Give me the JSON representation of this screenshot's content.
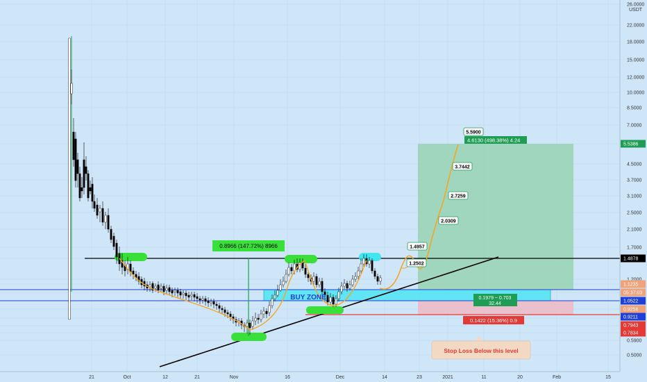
{
  "chart_data": {
    "type": "candlestick",
    "currency_label": "USDT",
    "scale": "log",
    "y_ticks": [
      "26.0000",
      "22.0000",
      "18.0000",
      "15.0000",
      "12.0000",
      "10.0000",
      "8.5000",
      "7.0000",
      "5.5386",
      "4.5000",
      "3.7000",
      "3.1000",
      "2.5000",
      "2.1000",
      "1.7000",
      "1.4878",
      "1.2000",
      "1.1235",
      "05:37:03",
      "1.0522",
      "0.9256",
      "0.9211",
      "0.7943",
      "0.7834",
      "0.5900",
      "0.5000"
    ],
    "x_ticks": [
      "21",
      "Oct",
      "12",
      "21",
      "Nov",
      "16",
      "Dec",
      "14",
      "23",
      "2021",
      "11",
      "20",
      "Feb",
      "15"
    ],
    "price_tags": [
      {
        "label": "5.5386",
        "color": "#1f9d55"
      },
      {
        "label": "1.4878",
        "color": "#000000"
      },
      {
        "label": "1.1235",
        "color": "#f0a37a"
      },
      {
        "label": "05:37:03",
        "color": "#f0a37a"
      },
      {
        "label": "1.0522",
        "color": "#1e3fd8"
      },
      {
        "label": "0.9256",
        "color": "#f0a37a"
      },
      {
        "label": "0.9211",
        "color": "#1e3fd8"
      },
      {
        "label": "0.7943",
        "color": "#e53935"
      },
      {
        "label": "0.7834",
        "color": "#e53935"
      }
    ],
    "annotations": {
      "measure_label": "0.8966 (147.72%) 8966",
      "buy_zone": "BUY ZONE",
      "targets": [
        "5.5900",
        "3.7442",
        "2.7259",
        "2.0309",
        "1.4957",
        "1.2502"
      ],
      "profit_label": "4.6130 (498.38%) 4.24",
      "range_label_line1": "0.1979 ~ 0.703",
      "range_label_line2": "32.44",
      "loss_label": "0.1422 (15.36%) 0.9",
      "stop_loss_note": "Stop Loss Below this level"
    },
    "colors": {
      "background": "#cfe6f9",
      "up": "#ffffff",
      "down": "#000000",
      "curve": "#f5a623",
      "highlight": "#39e039",
      "cyan_highlight": "#41e6f0",
      "buy_zone": "#4de3f2",
      "profit_zone": "#8fd0a8",
      "loss_zone": "#f0b9c6",
      "stop_line": "#e53935",
      "blue_line": "#1e3fd8",
      "accent_green": "#1f9d55"
    }
  }
}
